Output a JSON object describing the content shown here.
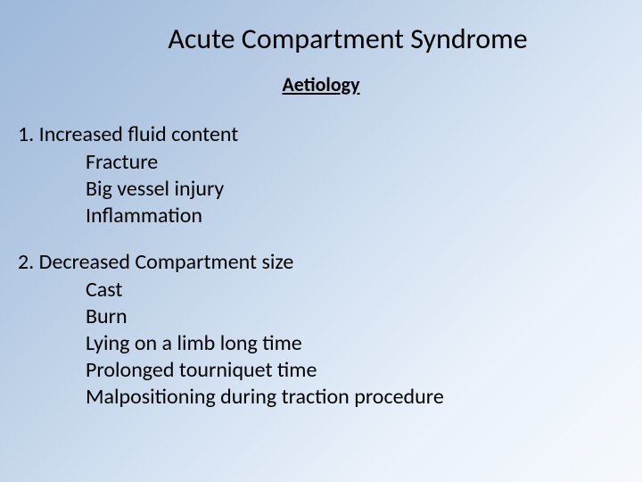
{
  "slide": {
    "title": "Acute Compartment Syndrome",
    "subtitle": "Aetiology",
    "background_gradient": {
      "start": "#9db8d9",
      "end": "#f5f9fd",
      "angle": 135
    },
    "title_fontsize": 32,
    "subtitle_fontsize": 22,
    "body_fontsize": 24,
    "text_color": "#000000",
    "sections": [
      {
        "number": "1.",
        "header": "Increased fluid content",
        "items": [
          "Fracture",
          "Big vessel injury",
          "Inflammation"
        ]
      },
      {
        "number": "2.",
        "header": "Decreased Compartment size",
        "items": [
          "Cast",
          "Burn",
          "Lying on a limb long time",
          "Prolonged tourniquet time",
          "Malpositioning during traction procedure"
        ]
      }
    ]
  }
}
